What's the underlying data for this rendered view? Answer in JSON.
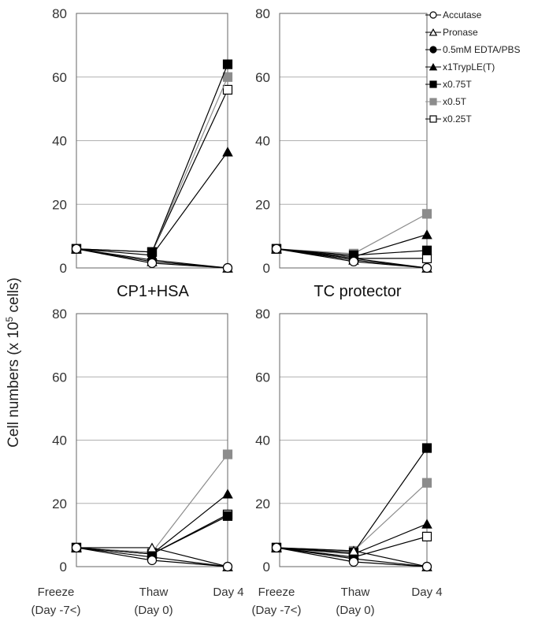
{
  "figure": {
    "ylabel_prefix": "Cell numbers (x 10",
    "ylabel_sup": "5",
    "ylabel_suffix": " cells)"
  },
  "chart_data": [
    {
      "type": "line",
      "title": "",
      "title_below": "CP1+HSA",
      "categories": [
        "Freeze (Day -7<)",
        "Thaw (Day 0)",
        "Day 4"
      ],
      "ylim": [
        0,
        80
      ],
      "yticks": [
        0,
        20,
        40,
        60,
        80
      ],
      "grid": true,
      "series": [
        {
          "name": "Accutase",
          "values": [
            6,
            1.5,
            0
          ]
        },
        {
          "name": "Pronase",
          "values": [
            6,
            2,
            0
          ]
        },
        {
          "name": "0.5mM EDTA/PBS",
          "values": [
            6,
            2.5,
            0
          ]
        },
        {
          "name": "x1TrypLE(T)",
          "values": [
            6,
            4,
            36.5
          ]
        },
        {
          "name": "x0.75T",
          "values": [
            6,
            5,
            64
          ]
        },
        {
          "name": "x0.5T",
          "values": [
            6,
            5,
            60
          ]
        },
        {
          "name": "x0.25T",
          "values": [
            6,
            5,
            56
          ]
        }
      ]
    },
    {
      "type": "line",
      "title": "",
      "title_below": "TC protector",
      "categories": [
        "Freeze (Day -7<)",
        "Thaw (Day 0)",
        "Day 4"
      ],
      "ylim": [
        0,
        80
      ],
      "yticks": [
        0,
        20,
        40,
        60,
        80
      ],
      "grid": true,
      "legend_position": "top-right",
      "series": [
        {
          "name": "Accutase",
          "values": [
            6,
            2,
            0
          ]
        },
        {
          "name": "Pronase",
          "values": [
            6,
            2.5,
            0
          ]
        },
        {
          "name": "0.5mM EDTA/PBS",
          "values": [
            6,
            3,
            0
          ]
        },
        {
          "name": "x1TrypLE(T)",
          "values": [
            6,
            3.5,
            10.5
          ]
        },
        {
          "name": "x0.75T",
          "values": [
            6,
            4,
            5.5
          ]
        },
        {
          "name": "x0.5T",
          "values": [
            6,
            4.5,
            17
          ]
        },
        {
          "name": "x0.25T",
          "values": [
            6,
            3,
            3
          ]
        }
      ]
    },
    {
      "type": "line",
      "title": "",
      "categories": [
        "Freeze (Day -7<)",
        "Thaw (Day 0)",
        "Day 4"
      ],
      "ylim": [
        0,
        80
      ],
      "yticks": [
        0,
        20,
        40,
        60,
        80
      ],
      "grid": true,
      "series": [
        {
          "name": "Accutase",
          "values": [
            6,
            2,
            0
          ]
        },
        {
          "name": "Pronase",
          "values": [
            6,
            6,
            0
          ]
        },
        {
          "name": "0.5mM EDTA/PBS",
          "values": [
            6,
            3,
            0
          ]
        },
        {
          "name": "x1TrypLE(T)",
          "values": [
            6,
            4,
            23
          ]
        },
        {
          "name": "x0.75T",
          "values": [
            6,
            4,
            16
          ]
        },
        {
          "name": "x0.5T",
          "values": [
            6,
            4.5,
            35.5
          ]
        },
        {
          "name": "x0.25T",
          "values": [
            6,
            4,
            16.5
          ]
        }
      ]
    },
    {
      "type": "line",
      "title": "",
      "categories": [
        "Freeze (Day -7<)",
        "Thaw (Day 0)",
        "Day 4"
      ],
      "ylim": [
        0,
        80
      ],
      "yticks": [
        0,
        20,
        40,
        60,
        80
      ],
      "grid": true,
      "series": [
        {
          "name": "Accutase",
          "values": [
            6,
            1.5,
            0
          ]
        },
        {
          "name": "Pronase",
          "values": [
            6,
            5,
            0
          ]
        },
        {
          "name": "0.5mM EDTA/PBS",
          "values": [
            6,
            2.5,
            0
          ]
        },
        {
          "name": "x1TrypLE(T)",
          "values": [
            6,
            4,
            13.5
          ]
        },
        {
          "name": "x0.75T",
          "values": [
            6,
            4.5,
            37.5
          ]
        },
        {
          "name": "x0.5T",
          "values": [
            6,
            5,
            26.5
          ]
        },
        {
          "name": "x0.25T",
          "values": [
            6,
            3,
            9.5
          ]
        }
      ]
    }
  ],
  "legend": {
    "entries": [
      {
        "name": "Accutase",
        "marker": "circle",
        "fill": "#ffffff",
        "stroke": "#000000"
      },
      {
        "name": "Pronase",
        "marker": "triangle",
        "fill": "#ffffff",
        "stroke": "#000000"
      },
      {
        "name": "0.5mM EDTA/PBS",
        "marker": "circle",
        "fill": "#000000",
        "stroke": "#000000"
      },
      {
        "name": "x1TrypLE(T)",
        "marker": "triangle",
        "fill": "#000000",
        "stroke": "#000000"
      },
      {
        "name": "x0.75T",
        "marker": "square",
        "fill": "#000000",
        "stroke": "#000000"
      },
      {
        "name": "x0.5T",
        "marker": "square",
        "fill": "#8c8c8c",
        "stroke": "#8c8c8c"
      },
      {
        "name": "x0.25T",
        "marker": "square",
        "fill": "#ffffff",
        "stroke": "#000000"
      }
    ]
  },
  "x_tick_labels": {
    "freeze_line1": "Freeze",
    "freeze_line2": "(Day -7<)",
    "thaw_line1": "Thaw",
    "thaw_line2": "(Day 0)",
    "day4": "Day 4"
  }
}
